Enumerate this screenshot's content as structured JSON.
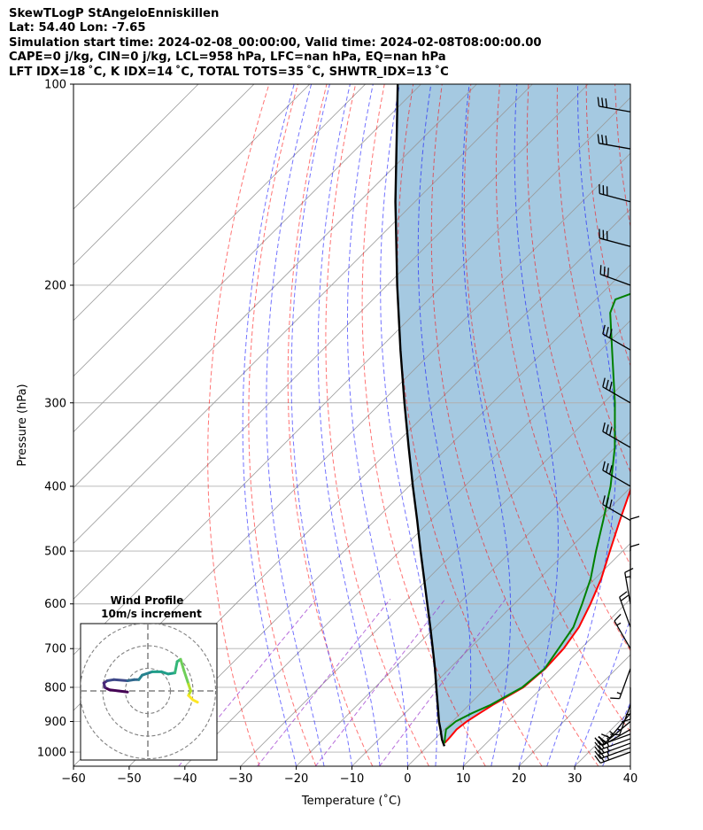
{
  "header": {
    "line1": "SkewTLogP StAngeloEnniskillen",
    "line2": "Lat: 54.40   Lon: -7.65",
    "line3": "Simulation start time: 2024-02-08_00:00:00, Valid time: 2024-02-08T08:00:00.00",
    "line4": "CAPE=0 j/kg, CIN=0 j/kg, LCL=958 hPa, LFC=nan hPa, EQ=nan hPa",
    "line5": "LFT IDX=18 ˚C, K IDX=14 ˚C, TOTAL TOTS=35 ˚C, SHWTR_IDX=13 ˚C"
  },
  "chart_data": {
    "type": "skewt",
    "xlabel": "Temperature (˚C)",
    "ylabel": "Pressure (hPa)",
    "xlim": [
      -60,
      40
    ],
    "ylim": [
      1050,
      100
    ],
    "skew_slope": 1.0,
    "pressure_ticks": [
      100,
      200,
      300,
      400,
      500,
      600,
      700,
      800,
      900,
      1000
    ],
    "pressure_tick_labels": [
      "100",
      "200",
      "300",
      "400",
      "500",
      "600",
      "700",
      "800",
      "900",
      "1000"
    ],
    "temp_ticks": [
      -60,
      -50,
      -40,
      -30,
      -20,
      -10,
      0,
      10,
      20,
      30,
      40
    ],
    "temp_tick_labels": [
      "−60",
      "−50",
      "−40",
      "−30",
      "−20",
      "−10",
      "0",
      "10",
      "20",
      "30",
      "40"
    ],
    "colors": {
      "temperature": "#ff0000",
      "dewpoint": "#008000",
      "parcel": "#000000",
      "cin_shade": "#1f77b4",
      "dry_adiabat": "#ff0000",
      "moist_adiabat": "#0000ff",
      "mixing_ratio": "#9932cc",
      "isotherm": "#999999"
    },
    "temperature": {
      "name": "Temperature",
      "pressure": [
        970,
        950,
        925,
        900,
        875,
        850,
        800,
        750,
        700,
        650,
        600,
        550,
        500,
        450,
        400,
        350,
        300,
        250,
        220,
        210,
        200,
        190,
        170,
        150,
        130,
        110,
        100
      ],
      "values": [
        2.5,
        2.4,
        2.2,
        2.6,
        3.4,
        4.3,
        6.6,
        7.2,
        6.9,
        5.8,
        3.7,
        1.1,
        -2.3,
        -6.0,
        -10.0,
        -16.5,
        -24.0,
        -33.0,
        -39.5,
        -42.0,
        -41.0,
        -38.5,
        -38.5,
        -37.5,
        -37.5,
        -38.0,
        -38.5
      ]
    },
    "dewpoint": {
      "name": "Dewpoint",
      "pressure": [
        970,
        950,
        925,
        900,
        875,
        850,
        800,
        750,
        700,
        650,
        600,
        550,
        500,
        450,
        400,
        350,
        300,
        250,
        220,
        210,
        200,
        190,
        170,
        155,
        140,
        120,
        100
      ],
      "values": [
        2.5,
        1.5,
        0.3,
        0.6,
        2.0,
        3.9,
        6.4,
        7.1,
        6.0,
        4.8,
        2.2,
        -0.8,
        -4.8,
        -9.0,
        -13.8,
        -20.0,
        -28.0,
        -38.0,
        -45.0,
        -46.5,
        -42.0,
        -37.5,
        -31.5,
        -31.0,
        -35.0,
        -43.0,
        -57.0
      ]
    },
    "parcel": {
      "name": "Parcel",
      "pressure": [
        980,
        958,
        925,
        900,
        850,
        800,
        750,
        700,
        650,
        600,
        550,
        500,
        450,
        400,
        350,
        300,
        250,
        200,
        150,
        100
      ],
      "values": [
        3.0,
        1.4,
        -0.7,
        -2.4,
        -5.6,
        -9.0,
        -12.6,
        -16.6,
        -20.9,
        -25.6,
        -30.7,
        -36.3,
        -42.4,
        -49.3,
        -57.0,
        -65.8,
        -76.0,
        -88.2,
        -103.5,
        -124.2
      ]
    },
    "wind_barbs": {
      "pressure": [
        1000,
        985,
        970,
        955,
        940,
        925,
        900,
        875,
        850,
        800,
        750,
        700,
        650,
        600,
        550,
        500,
        450,
        400,
        350,
        300,
        250,
        200,
        175,
        150,
        125,
        110
      ],
      "speed_kt": [
        25,
        25,
        25,
        25,
        25,
        20,
        15,
        15,
        15,
        15,
        15,
        15,
        20,
        15,
        10,
        10,
        30,
        30,
        30,
        30,
        30,
        30,
        30,
        30,
        30,
        30
      ],
      "direction_deg": [
        250,
        250,
        250,
        250,
        250,
        240,
        230,
        220,
        200,
        180,
        200,
        330,
        340,
        350,
        0,
        0,
        300,
        300,
        300,
        300,
        300,
        290,
        285,
        285,
        280,
        280
      ]
    },
    "hodograph": {
      "title": "Wind Profile",
      "subtitle": "10m/s increment",
      "ring_step_ms": 10,
      "u": [
        -9,
        -13,
        -17,
        -19,
        -19.5,
        -18,
        -15,
        -9,
        -6,
        -4,
        -2.5,
        2,
        6,
        9,
        12,
        13,
        14.5,
        16,
        18,
        19,
        18,
        20,
        22
      ],
      "v": [
        -0.5,
        0,
        0.5,
        1.5,
        3.5,
        4.5,
        5,
        4.5,
        5,
        5,
        7,
        8.5,
        8.5,
        7.5,
        8,
        13,
        14,
        9,
        3,
        0,
        -2,
        -4,
        -5
      ]
    }
  }
}
